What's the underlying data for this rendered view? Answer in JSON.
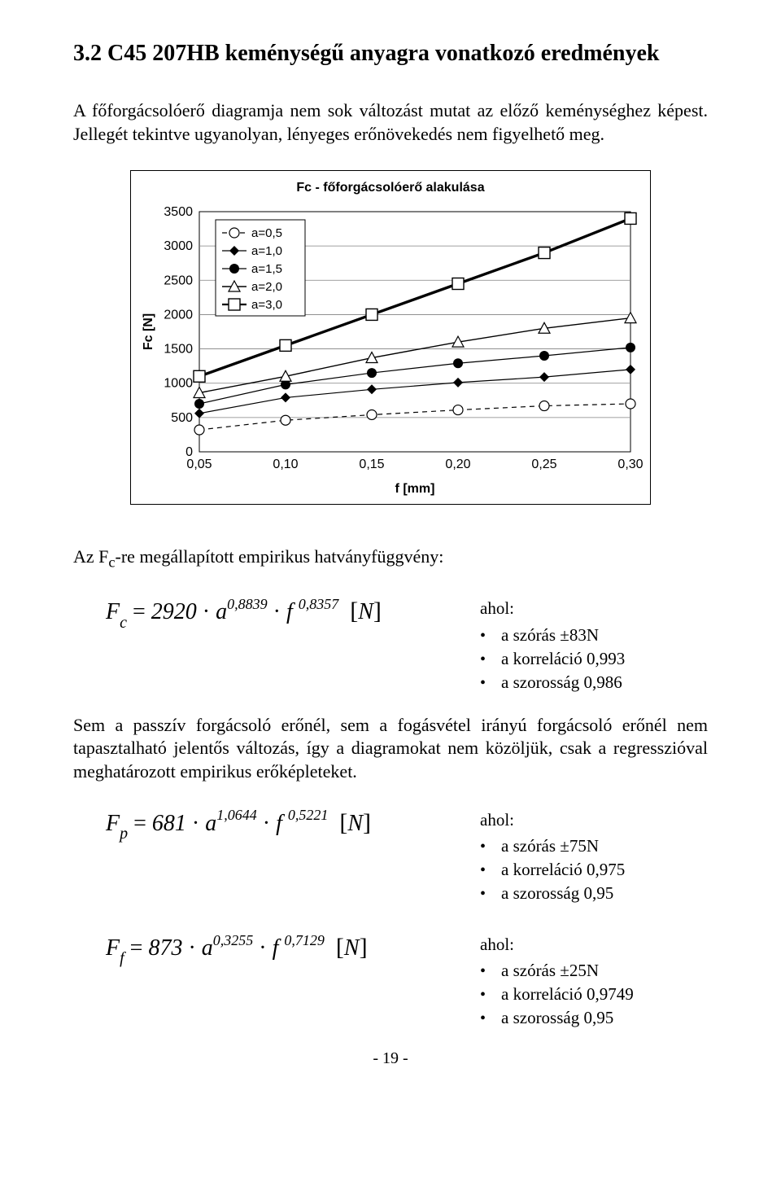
{
  "section": {
    "title": "3.2 C45 207HB keménységű anyagra vonatkozó eredmények",
    "intro": "A főforgácsolóerő diagramja nem sok változást mutat az előző keménységhez képest. Jellegét tekintve ugyanolyan, lényeges erőnövekedés nem figyelhető meg."
  },
  "chart": {
    "type": "line",
    "title": "Fc - főforgácsolóerő alakulása",
    "title_fontsize": 16,
    "background_color": "#ffffff",
    "grid_color": "#808080",
    "grid_vert_color": "#808080",
    "axis_color": "#000000",
    "x": {
      "label": "f [mm]",
      "ticks": [
        "0,05",
        "0,10",
        "0,15",
        "0,20",
        "0,25",
        "0,30"
      ],
      "min": 0.05,
      "max": 0.3
    },
    "y": {
      "label": "Fc [N]",
      "ticks": [
        0,
        500,
        1000,
        1500,
        2000,
        2500,
        3000,
        3500
      ],
      "min": 0,
      "max": 3500
    },
    "series": [
      {
        "name": "a=0,5",
        "color": "#000000",
        "dash": "6,5",
        "marker": "circle-open",
        "width": 1.2,
        "values": [
          320,
          460,
          540,
          610,
          670,
          700
        ]
      },
      {
        "name": "a=1,0",
        "color": "#000000",
        "dash": "",
        "marker": "diamond",
        "width": 1.2,
        "values": [
          560,
          790,
          910,
          1010,
          1090,
          1200
        ]
      },
      {
        "name": "a=1,5",
        "color": "#000000",
        "dash": "",
        "marker": "circle",
        "width": 1.2,
        "values": [
          700,
          980,
          1150,
          1290,
          1400,
          1520
        ]
      },
      {
        "name": "a=2,0",
        "color": "#000000",
        "dash": "",
        "marker": "triangle-open",
        "width": 1.4,
        "values": [
          860,
          1100,
          1370,
          1600,
          1800,
          1950
        ]
      },
      {
        "name": "a=3,0",
        "color": "#000000",
        "dash": "",
        "marker": "square-open",
        "width": 3.4,
        "values": [
          1100,
          1550,
          2000,
          2450,
          2900,
          3400
        ]
      }
    ],
    "legend_labels": [
      "a=0,5",
      "a=1,0",
      "a=1,5",
      "a=2,0",
      "a=3,0"
    ],
    "legend_font": 15,
    "tick_font": 16
  },
  "empirikus_line": "Az Fc-re megállapított empirikus hatványfüggvény:",
  "formula1": {
    "sub": "c",
    "coef": "2920",
    "ea": "0,8839",
    "ef": "0,8357",
    "stats_label": "ahol:",
    "szoras": "a szórás ±83N",
    "korrel": "a korreláció 0,993",
    "szoros": "a szorosság 0,986"
  },
  "para2": "Sem a passzív forgácsoló erőnél, sem a fogásvétel irányú forgácsoló erőnél nem tapasztalható jelentős változás, így a diagramokat nem közöljük, csak a regresszióval meghatározott empirikus erőképleteket.",
  "formula2": {
    "sub": "p",
    "coef": "681",
    "ea": "1,0644",
    "ef": "0,5221",
    "stats_label": "ahol:",
    "szoras": "a szórás ±75N",
    "korrel": "a korreláció 0,975",
    "szoros": "a szorosság 0,95"
  },
  "formula3": {
    "sub": "f",
    "coef": "873",
    "ea": "0,3255",
    "ef": "0,7129",
    "stats_label": "ahol:",
    "szoras": "a szórás ±25N",
    "korrel": "a korreláció 0,9749",
    "szoros": "a szorosság 0,95"
  },
  "pageno": "- 19 -"
}
